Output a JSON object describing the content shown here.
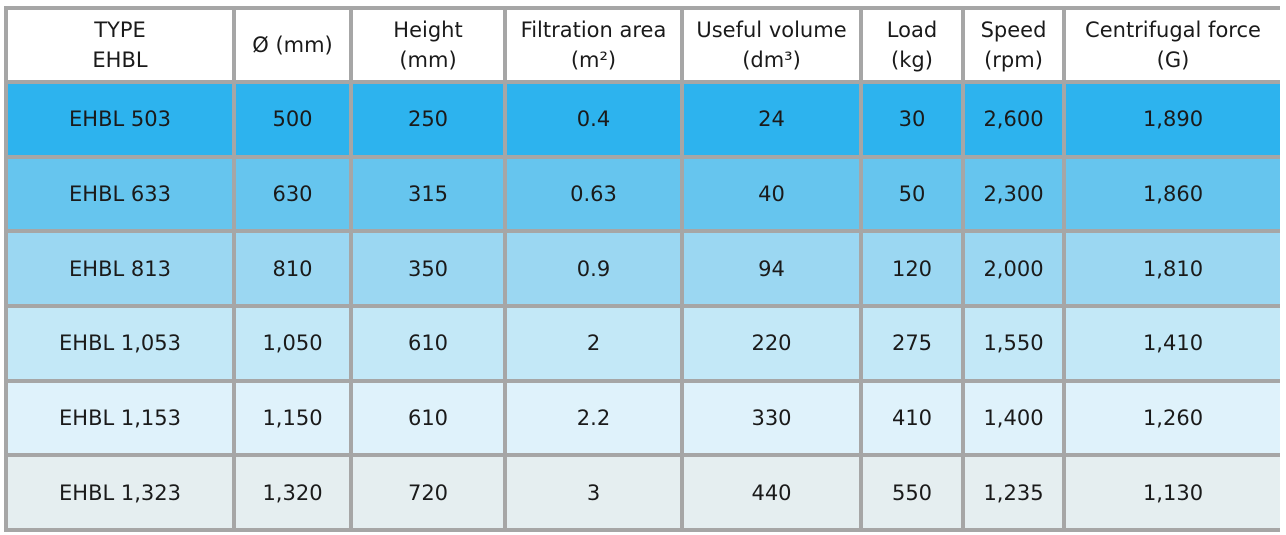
{
  "columns": [
    {
      "line1": "TYPE",
      "line2": "EHBL"
    },
    {
      "line1": "Ø (mm)",
      "line2": ""
    },
    {
      "line1": "Height",
      "line2": "(mm)"
    },
    {
      "line1": "Filtration area",
      "line2": "(m²)"
    },
    {
      "line1": "Useful volume",
      "line2": "(dm³)"
    },
    {
      "line1": "Load",
      "line2": "(kg)"
    },
    {
      "line1": "Speed",
      "line2": "(rpm)"
    },
    {
      "line1": "Centrifugal force",
      "line2": "(G)"
    }
  ],
  "rows": [
    {
      "color": "#2db3ee",
      "cells": [
        "EHBL 503",
        "500",
        "250",
        "0.4",
        "24",
        "30",
        "2,600",
        "1,890"
      ]
    },
    {
      "color": "#66c5ee",
      "cells": [
        "EHBL 633",
        "630",
        "315",
        "0.63",
        "40",
        "50",
        "2,300",
        "1,860"
      ]
    },
    {
      "color": "#9bd7f2",
      "cells": [
        "EHBL 813",
        "810",
        "350",
        "0.9",
        "94",
        "120",
        "2,000",
        "1,810"
      ]
    },
    {
      "color": "#c3e8f7",
      "cells": [
        "EHBL 1,053",
        "1,050",
        "610",
        "2",
        "220",
        "275",
        "1,550",
        "1,410"
      ]
    },
    {
      "color": "#dff2fb",
      "cells": [
        "EHBL 1,153",
        "1,150",
        "610",
        "2.2",
        "330",
        "410",
        "1,400",
        "1,260"
      ]
    },
    {
      "color": "#e5eef0",
      "cells": [
        "EHBL 1,323",
        "1,320",
        "720",
        "3",
        "440",
        "550",
        "1,235",
        "1,130"
      ]
    }
  ]
}
